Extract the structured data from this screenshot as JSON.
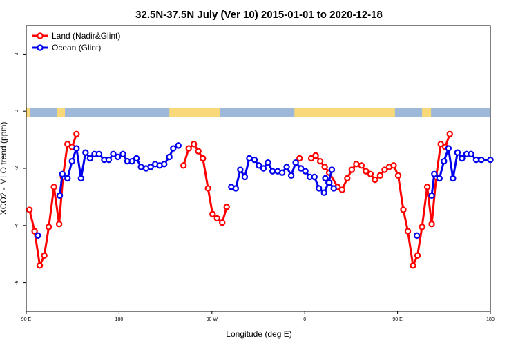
{
  "chart_data": {
    "type": "line",
    "title": "32.5N-37.5N July (Ver 10)   2015-01-01 to 2020-12-18",
    "xlabel": "Longitude (deg E)",
    "ylabel": "XCO2 - MLO trend (ppm)",
    "xlim": [
      90,
      450
    ],
    "ylim": [
      -7,
      3
    ],
    "x_tick_values": [
      90,
      162,
      234,
      306,
      378,
      450
    ],
    "x_tick_labels": [
      "90 E",
      "180",
      "90 W",
      "0",
      "90 E",
      "180"
    ],
    "y_ticks": [
      2,
      0,
      -2,
      -4,
      -6
    ],
    "grid": false,
    "legend_position": "top-left",
    "land_mask": {
      "colors": {
        "ocean": "#9db8d8",
        "land": "#f8d878"
      },
      "land_ranges": [
        [
          90,
          93
        ],
        [
          114,
          120
        ],
        [
          201,
          240
        ],
        [
          298,
          376
        ],
        [
          397,
          404
        ]
      ]
    },
    "series": [
      {
        "name": "Land (Nadir&Glint)",
        "color": "#ff0000",
        "segments": [
          [
            [
              92.5,
              -3.45
            ],
            [
              96.5,
              -4.2
            ],
            [
              100.5,
              -5.4
            ],
            [
              104,
              -5.05
            ],
            [
              107.5,
              -4.05
            ],
            [
              111.5,
              -2.65
            ],
            [
              115.5,
              -3.95
            ],
            [
              118.5,
              -2.3
            ],
            [
              122,
              -1.15
            ],
            [
              125.5,
              -1.25
            ],
            [
              129,
              -0.8
            ]
          ],
          [
            [
              212,
              -1.9
            ],
            [
              216,
              -1.3
            ],
            [
              220,
              -1.15
            ],
            [
              223.5,
              -1.4
            ],
            [
              227,
              -1.65
            ],
            [
              231,
              -2.7
            ],
            [
              234.5,
              -3.6
            ],
            [
              238,
              -3.75
            ],
            [
              242,
              -3.9
            ],
            [
              245.5,
              -3.35
            ]
          ],
          [
            [
              302,
              -1.65
            ]
          ],
          [
            [
              311,
              -1.65
            ],
            [
              314.5,
              -1.55
            ],
            [
              318,
              -1.75
            ],
            [
              321.5,
              -1.95
            ],
            [
              325,
              -2.15
            ],
            [
              331.5,
              -2.65
            ],
            [
              335,
              -2.75
            ],
            [
              339,
              -2.35
            ],
            [
              342.5,
              -2.05
            ],
            [
              346,
              -1.85
            ],
            [
              350,
              -1.9
            ],
            [
              353.5,
              -2.1
            ],
            [
              357,
              -2.2
            ],
            [
              360.5,
              -2.4
            ],
            [
              364.5,
              -2.25
            ],
            [
              368,
              -2.05
            ],
            [
              371.5,
              -1.95
            ],
            [
              375,
              -1.9
            ],
            [
              378.5,
              -2.25
            ],
            [
              382.5,
              -3.45
            ],
            [
              386,
              -4.2
            ],
            [
              390,
              -5.4
            ],
            [
              393.5,
              -5.05
            ],
            [
              397,
              -4.05
            ],
            [
              401,
              -2.65
            ],
            [
              404.5,
              -3.95
            ],
            [
              408,
              -2.3
            ],
            [
              411.5,
              -1.15
            ],
            [
              415,
              -1.25
            ],
            [
              418.5,
              -0.8
            ]
          ]
        ]
      },
      {
        "name": "Ocean (Glint)",
        "color": "#0000ee",
        "segments": [
          [
            [
              99,
              -4.35
            ]
          ],
          [
            [
              116,
              -2.95
            ],
            [
              118,
              -2.2
            ],
            [
              122,
              -2.35
            ],
            [
              125.5,
              -1.75
            ],
            [
              129,
              -1.3
            ],
            [
              132.5,
              -2.35
            ],
            [
              136,
              -1.45
            ],
            [
              139.5,
              -1.65
            ],
            [
              143,
              -1.5
            ],
            [
              146.5,
              -1.5
            ],
            [
              150.5,
              -1.7
            ],
            [
              154,
              -1.7
            ],
            [
              157.5,
              -1.5
            ],
            [
              161,
              -1.6
            ],
            [
              165,
              -1.5
            ],
            [
              168.5,
              -1.75
            ],
            [
              172,
              -1.75
            ],
            [
              175.5,
              -1.65
            ],
            [
              179,
              -1.95
            ],
            [
              183,
              -2.0
            ],
            [
              186.5,
              -1.95
            ],
            [
              190,
              -1.85
            ],
            [
              193.5,
              -1.9
            ],
            [
              197,
              -1.85
            ],
            [
              201,
              -1.6
            ],
            [
              204,
              -1.3
            ],
            [
              208,
              -1.2
            ]
          ],
          [
            [
              249,
              -2.65
            ],
            [
              252.5,
              -2.7
            ],
            [
              256,
              -2.05
            ],
            [
              259.5,
              -2.3
            ],
            [
              263,
              -1.65
            ],
            [
              267,
              -1.7
            ],
            [
              270.5,
              -1.9
            ],
            [
              274,
              -2.0
            ],
            [
              277.5,
              -1.8
            ],
            [
              281,
              -2.1
            ],
            [
              285,
              -2.1
            ],
            [
              288.5,
              -2.15
            ],
            [
              292,
              -1.95
            ],
            [
              295.5,
              -2.25
            ],
            [
              299,
              -1.8
            ],
            [
              303,
              -2.0
            ],
            [
              306.5,
              -2.1
            ],
            [
              310,
              -2.3
            ],
            [
              313.5,
              -2.3
            ],
            [
              317,
              -2.7
            ],
            [
              321,
              -2.85
            ],
            [
              324.5,
              -2.5
            ],
            [
              327,
              -2.05
            ]
          ],
          [
            [
              322,
              -2.35
            ],
            [
              325,
              -2.5
            ],
            [
              328.5,
              -2.7
            ]
          ],
          [
            [
              393,
              -4.35
            ]
          ],
          [
            [
              404.5,
              -2.95
            ],
            [
              406.5,
              -2.2
            ],
            [
              410.5,
              -2.35
            ],
            [
              414,
              -1.75
            ],
            [
              417.5,
              -1.3
            ],
            [
              421,
              -2.35
            ],
            [
              424.5,
              -1.45
            ],
            [
              428,
              -1.65
            ],
            [
              431.5,
              -1.5
            ],
            [
              435,
              -1.5
            ],
            [
              439,
              -1.7
            ],
            [
              443,
              -1.7
            ],
            [
              450,
              -1.7
            ]
          ]
        ]
      }
    ]
  }
}
